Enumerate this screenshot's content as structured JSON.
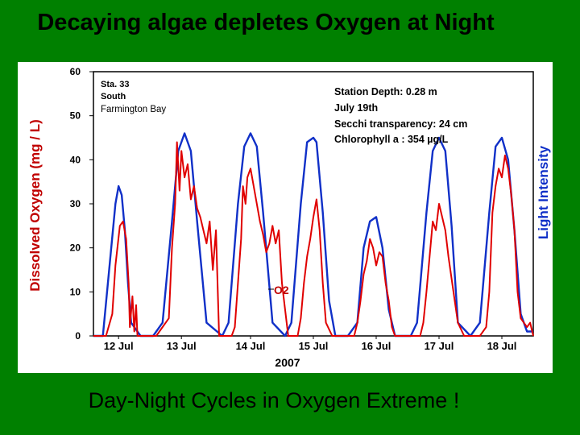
{
  "slide": {
    "title": "Decaying algae depletes Oxygen at Night",
    "caption": "Day-Night Cycles in Oxygen Extreme !"
  },
  "colors": {
    "background": "#008000",
    "oxygen": "#e00000",
    "light": "#1030c8",
    "axis_label_left": "#c00000",
    "axis_label_right": "#1030c8"
  },
  "chart_data": {
    "type": "line",
    "title": "",
    "xlabel": "2007",
    "ylabel": "Dissolved Oxygen (mg / L)",
    "y2label": "Light Intensity",
    "ylim": [
      0,
      60
    ],
    "yticks": [
      0,
      10,
      20,
      30,
      40,
      50,
      60
    ],
    "xlim": [
      11.8,
      18.8
    ],
    "xticks": [
      {
        "x": 12.2,
        "label": "12 Jul"
      },
      {
        "x": 13.2,
        "label": "13 Jul"
      },
      {
        "x": 14.3,
        "label": "14 Jul"
      },
      {
        "x": 15.3,
        "label": "15 Jul"
      },
      {
        "x": 16.3,
        "label": "16 Jul"
      },
      {
        "x": 17.3,
        "label": "17 Jul"
      },
      {
        "x": 18.3,
        "label": "18 Jul"
      }
    ],
    "station_lines": [
      "Sta. 33",
      "South",
      "Farmington Bay"
    ],
    "info_lines": [
      "Station Depth:   0.28 m",
      "July 19th",
      "Secchi transparency:  24 cm",
      "Chlorophyll a :  354 µg/L"
    ],
    "series_label": "O2",
    "series": [
      {
        "name": "Light Intensity",
        "color": "#1030c8",
        "x": [
          11.8,
          11.95,
          12.05,
          12.15,
          12.2,
          12.25,
          12.3,
          12.35,
          12.4,
          12.55,
          12.75,
          12.9,
          13.05,
          13.15,
          13.25,
          13.35,
          13.45,
          13.6,
          13.85,
          13.95,
          14.1,
          14.2,
          14.3,
          14.4,
          14.5,
          14.65,
          14.85,
          14.95,
          15.1,
          15.2,
          15.3,
          15.35,
          15.45,
          15.55,
          15.65,
          15.85,
          16.0,
          16.1,
          16.2,
          16.3,
          16.4,
          16.5,
          16.6,
          16.85,
          16.95,
          17.1,
          17.2,
          17.3,
          17.4,
          17.5,
          17.6,
          17.8,
          17.95,
          18.1,
          18.2,
          18.3,
          18.4,
          18.5,
          18.6,
          18.7,
          18.75,
          18.8
        ],
        "values": [
          0,
          0,
          15,
          30,
          34,
          32,
          24,
          12,
          3,
          0,
          0,
          3,
          26,
          42,
          46,
          42,
          26,
          3,
          0,
          3,
          30,
          43,
          46,
          43,
          28,
          3,
          0,
          3,
          30,
          44,
          45,
          44,
          28,
          8,
          0,
          0,
          3,
          20,
          26,
          27,
          20,
          6,
          0,
          0,
          3,
          28,
          42,
          45,
          42,
          25,
          3,
          0,
          3,
          28,
          43,
          45,
          40,
          24,
          5,
          1,
          1,
          1
        ]
      },
      {
        "name": "Dissolved Oxygen",
        "color": "#e00000",
        "x": [
          11.8,
          12.0,
          12.1,
          12.15,
          12.22,
          12.27,
          12.32,
          12.36,
          12.38,
          12.42,
          12.45,
          12.48,
          12.5,
          12.55,
          12.8,
          13.0,
          13.05,
          13.1,
          13.13,
          13.17,
          13.2,
          13.25,
          13.3,
          13.35,
          13.4,
          13.45,
          13.5,
          13.6,
          13.65,
          13.7,
          13.75,
          13.8,
          14.0,
          14.05,
          14.1,
          14.15,
          14.18,
          14.22,
          14.25,
          14.3,
          14.35,
          14.4,
          14.45,
          14.5,
          14.55,
          14.6,
          14.65,
          14.7,
          14.75,
          14.8,
          14.9,
          15.05,
          15.1,
          15.15,
          15.2,
          15.25,
          15.3,
          15.35,
          15.4,
          15.45,
          15.5,
          15.6,
          15.95,
          16.0,
          16.05,
          16.1,
          16.15,
          16.2,
          16.25,
          16.3,
          16.35,
          16.4,
          16.45,
          16.5,
          16.55,
          16.6,
          17.0,
          17.05,
          17.1,
          17.15,
          17.2,
          17.25,
          17.3,
          17.35,
          17.4,
          17.45,
          17.55,
          17.6,
          17.7,
          17.95,
          18.05,
          18.1,
          18.15,
          18.2,
          18.25,
          18.3,
          18.35,
          18.4,
          18.45,
          18.5,
          18.55,
          18.6,
          18.7,
          18.75,
          18.8
        ],
        "values": [
          0,
          0,
          5,
          16,
          25,
          26,
          22,
          12,
          2,
          9,
          1,
          7,
          0,
          0,
          0,
          4,
          20,
          30,
          44,
          33,
          42,
          36,
          39,
          31,
          34,
          29,
          27,
          21,
          26,
          15,
          24,
          0,
          0,
          2,
          12,
          22,
          34,
          30,
          36,
          38,
          34,
          30,
          26,
          23,
          19,
          21,
          25,
          21,
          24,
          12,
          0,
          0,
          4,
          12,
          18,
          22,
          27,
          31,
          24,
          12,
          3,
          0,
          0,
          3,
          8,
          14,
          17,
          22,
          20,
          16,
          19,
          18,
          12,
          8,
          2,
          0,
          0,
          3,
          10,
          18,
          26,
          24,
          30,
          27,
          24,
          18,
          8,
          3,
          0,
          0,
          2,
          10,
          28,
          34,
          38,
          36,
          41,
          38,
          32,
          24,
          10,
          4,
          2,
          3,
          0
        ]
      }
    ]
  }
}
